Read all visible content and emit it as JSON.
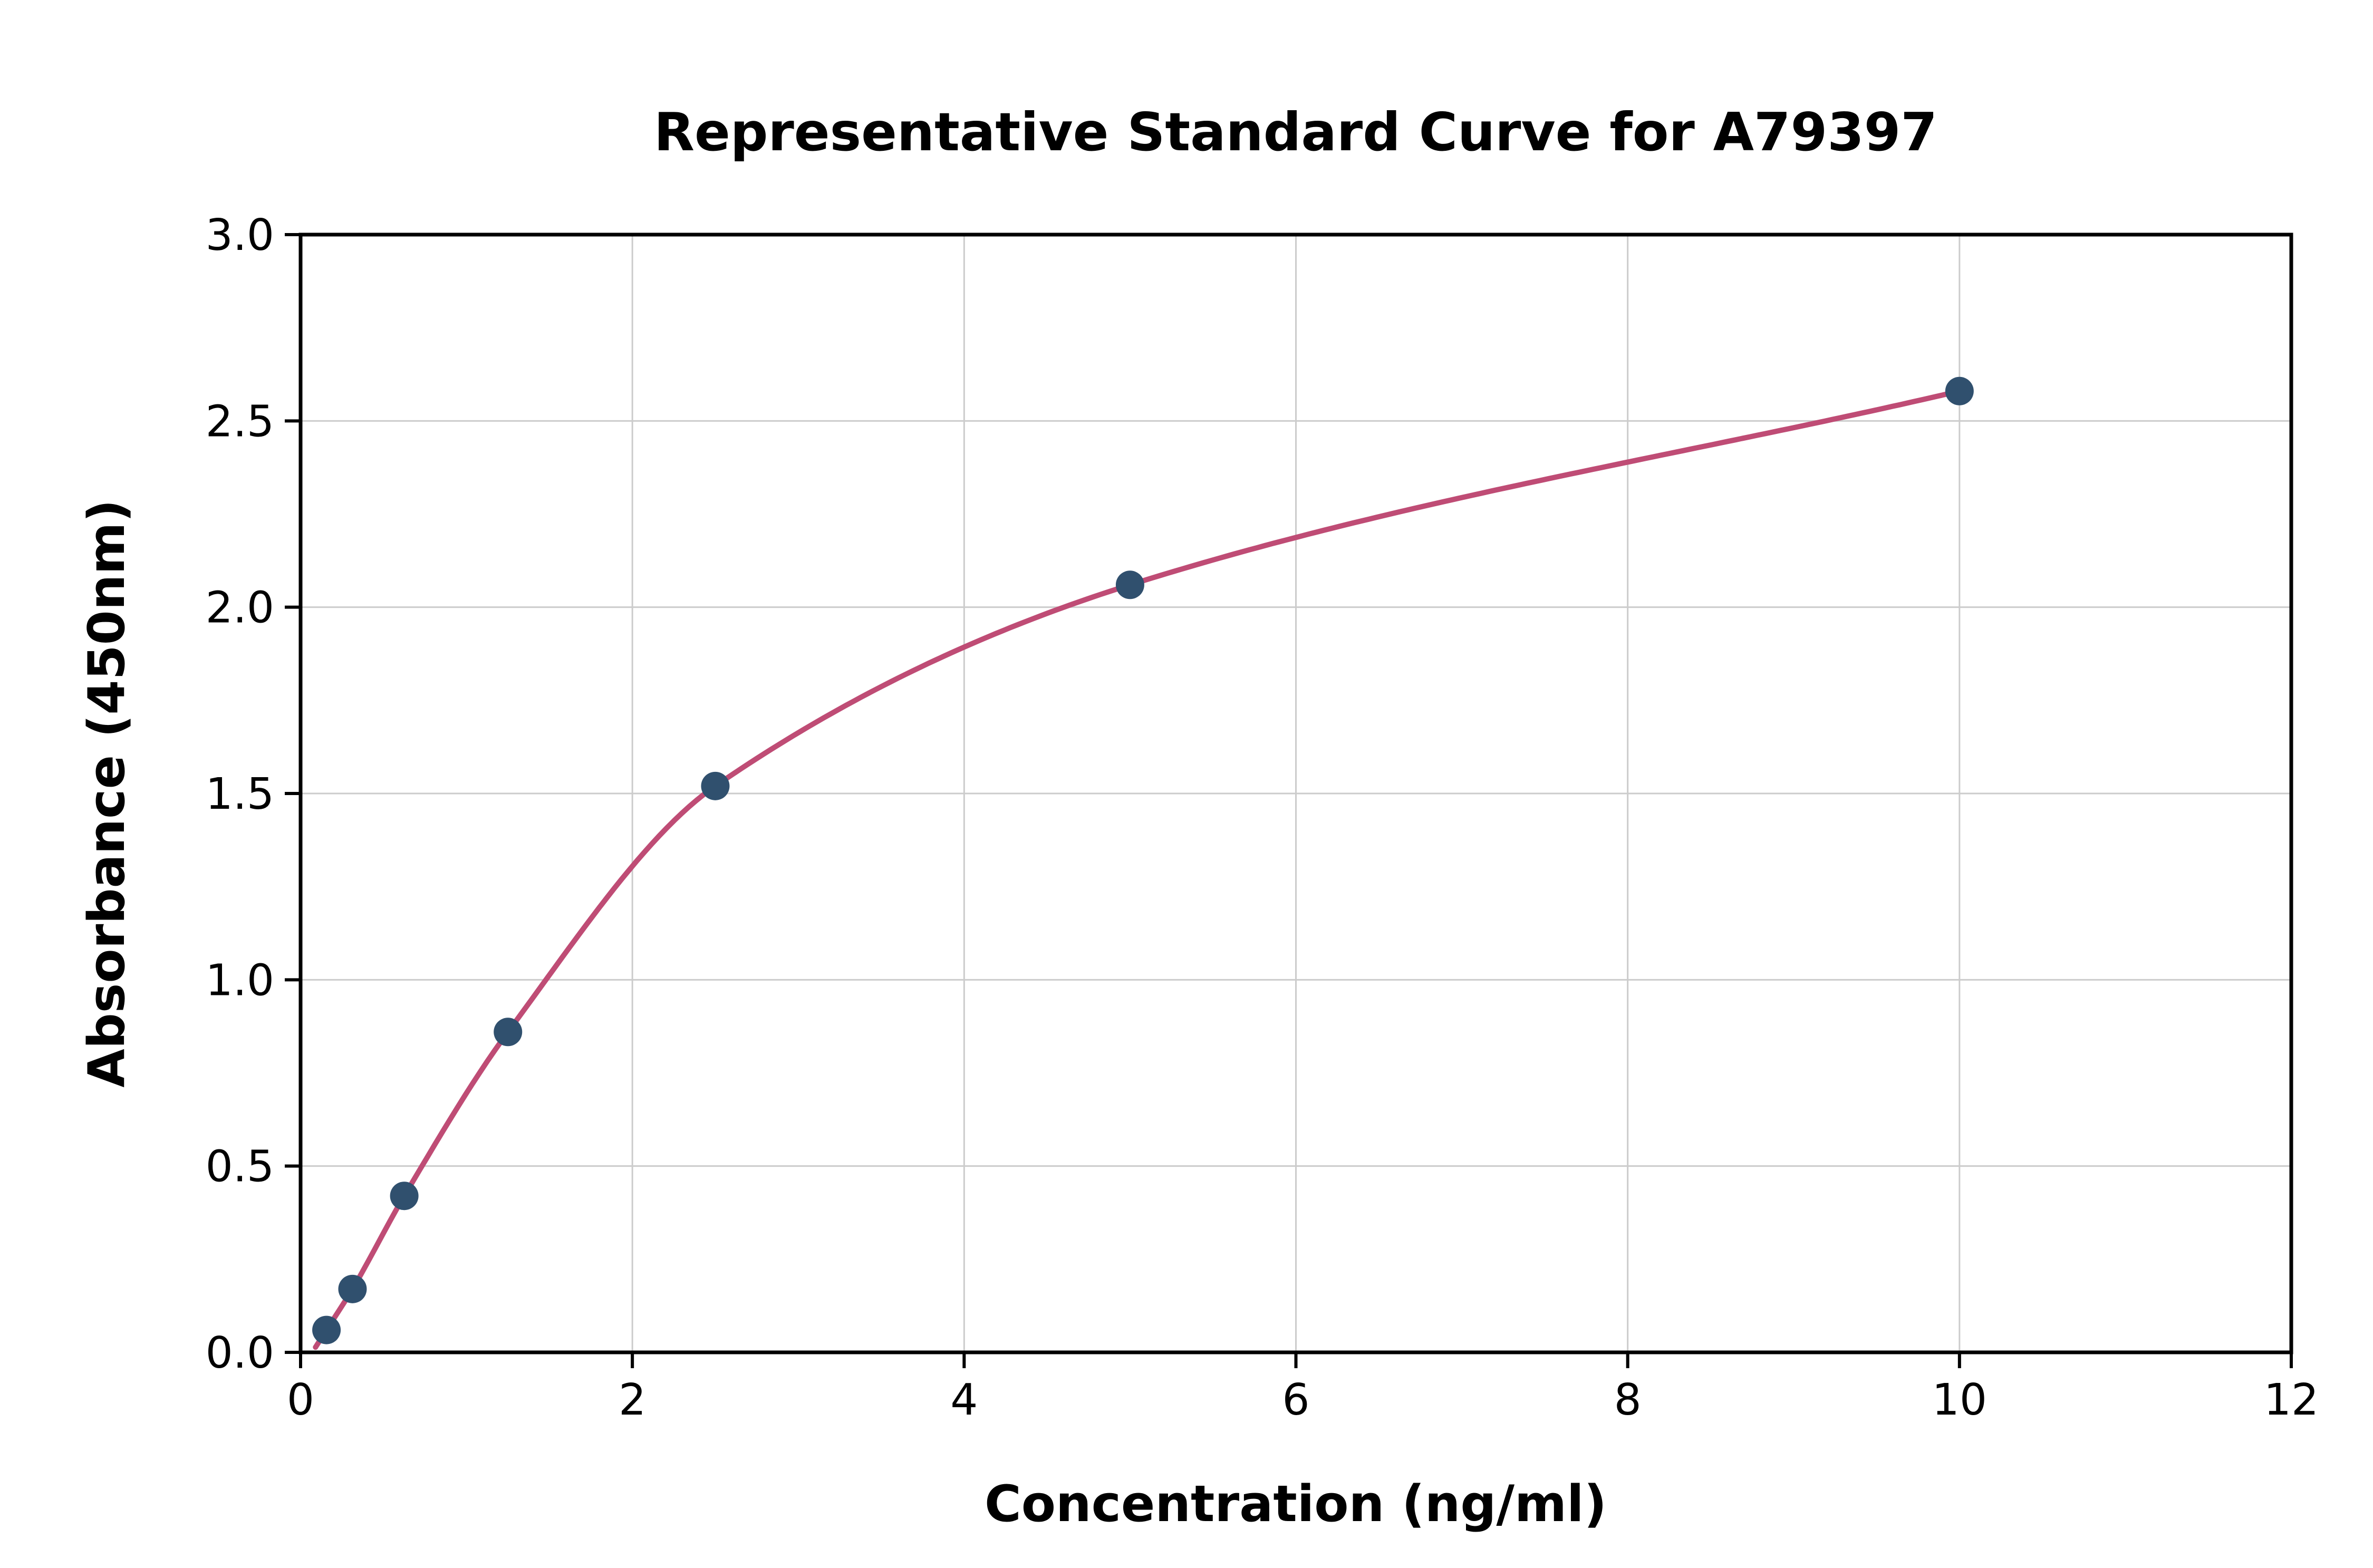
{
  "chart_data": {
    "type": "scatter",
    "title": "Representative Standard Curve for A79397",
    "xlabel": "Concentration (ng/ml)",
    "ylabel": "Absorbance (450nm)",
    "xlim": [
      0,
      12
    ],
    "ylim": [
      0,
      3
    ],
    "x_tick_values": [
      0,
      2,
      4,
      6,
      8,
      10,
      12
    ],
    "x_tick_labels": [
      "0",
      "2",
      "4",
      "6",
      "8",
      "10",
      "12"
    ],
    "y_tick_values": [
      0,
      0.5,
      1.0,
      1.5,
      2.0,
      2.5,
      3.0
    ],
    "y_tick_labels": [
      "0.0",
      "0.5",
      "1.0",
      "1.5",
      "2.0",
      "2.5",
      "3.0"
    ],
    "grid": true,
    "legend_position": "none",
    "points": [
      {
        "x": 0.156,
        "y": 0.06
      },
      {
        "x": 0.313,
        "y": 0.17
      },
      {
        "x": 0.625,
        "y": 0.42
      },
      {
        "x": 1.25,
        "y": 0.86
      },
      {
        "x": 2.5,
        "y": 1.52
      },
      {
        "x": 5.0,
        "y": 2.06
      },
      {
        "x": 10.0,
        "y": 2.58
      }
    ],
    "curve_color": "#bf4c75",
    "point_color": "#30506e",
    "grid_color": "#cccccc",
    "frame_color": "#000000"
  }
}
